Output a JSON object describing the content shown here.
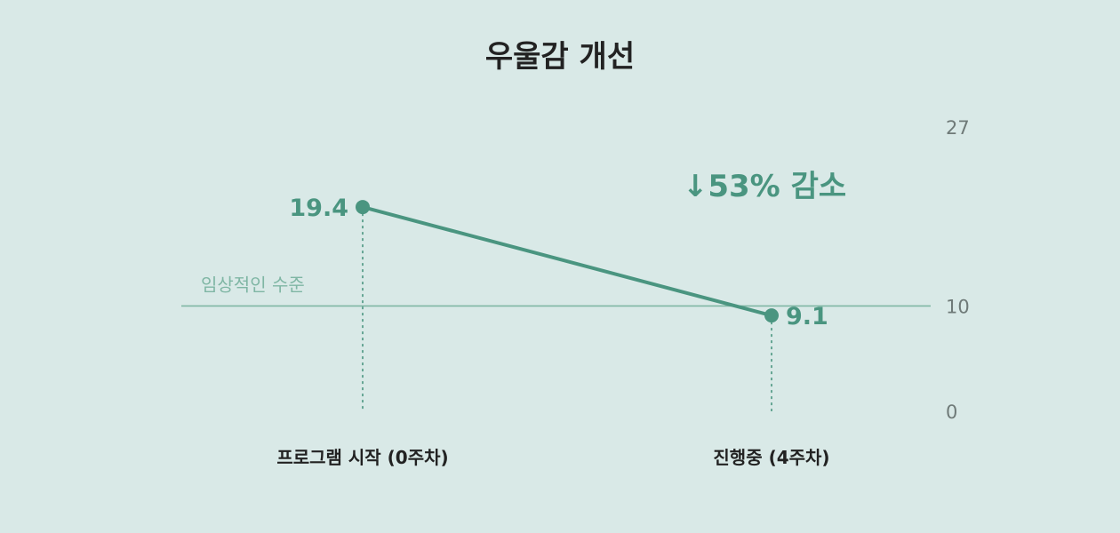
{
  "chart_data": {
    "type": "line",
    "title": "우울감 개선",
    "categories": [
      "프로그램 시작 (0주차)",
      "진행중 (4주차)"
    ],
    "values": [
      19.4,
      9.1
    ],
    "data_labels": [
      "19.4",
      "9.1"
    ],
    "ylim": [
      0,
      27
    ],
    "yticks": [
      0,
      10,
      27
    ],
    "ytick_labels": [
      "0",
      "10",
      "27"
    ],
    "y_axis_side": "right",
    "reference_line": {
      "value": 10,
      "label": "임상적인 수준"
    },
    "annotation": {
      "text": "↓53% 감소"
    },
    "grid": false,
    "legend": "none",
    "colors": {
      "line": "#4a9580",
      "reference": "#7fb6a4",
      "background": "#d9e9e7"
    }
  }
}
